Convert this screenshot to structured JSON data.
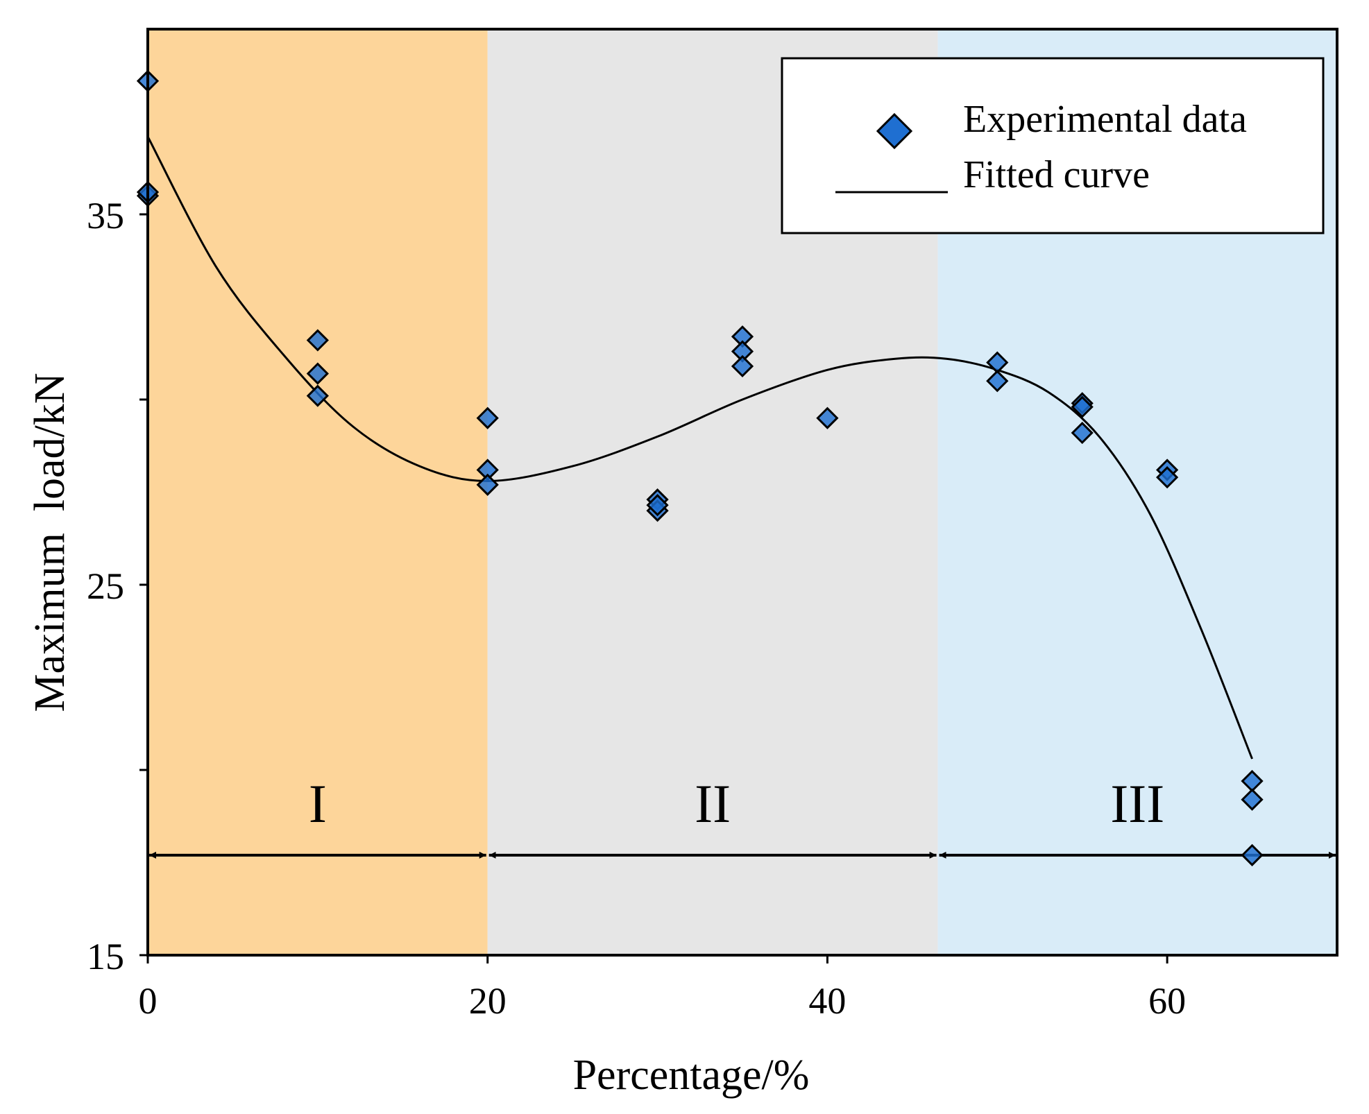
{
  "chart_data": {
    "type": "scatter",
    "xlabel": "Percentage/%",
    "ylabel": "Maximum  load/kN",
    "xlim": [
      0,
      70
    ],
    "ylim": [
      15,
      40
    ],
    "xticks": [
      0,
      20,
      40,
      60
    ],
    "yticks": [
      15,
      20,
      25,
      30,
      35
    ],
    "ytick_labels": [
      {
        "value": 15,
        "label": "15"
      },
      {
        "value": 25,
        "label": "25"
      },
      {
        "value": 35,
        "label": "35"
      }
    ],
    "xtick_labels": [
      {
        "value": 0,
        "label": "0"
      },
      {
        "value": 20,
        "label": "20"
      },
      {
        "value": 40,
        "label": "40"
      },
      {
        "value": 60,
        "label": "60"
      }
    ],
    "regions": [
      {
        "label": "I",
        "x_start": 0,
        "x_end": 20,
        "color": "#fdd59a"
      },
      {
        "label": "II",
        "x_start": 20,
        "x_end": 46.5,
        "color": "#e6e6e6"
      },
      {
        "label": "III",
        "x_start": 46.5,
        "x_end": 70,
        "color": "#d9ecf8"
      }
    ],
    "region_arrow_y": 17.7,
    "series": [
      {
        "name": "Experimental data",
        "kind": "scatter",
        "marker": "diamond",
        "color": "#1f6fd1",
        "points": [
          [
            0,
            38.6
          ],
          [
            0,
            35.5
          ],
          [
            0,
            35.6
          ],
          [
            10,
            31.6
          ],
          [
            10,
            30.7
          ],
          [
            10,
            30.1
          ],
          [
            20,
            29.5
          ],
          [
            20,
            28.1
          ],
          [
            20,
            27.7
          ],
          [
            30,
            27.3
          ],
          [
            30,
            27.0
          ],
          [
            30,
            27.15
          ],
          [
            35,
            31.7
          ],
          [
            35,
            31.3
          ],
          [
            35,
            30.9
          ],
          [
            40,
            29.5
          ],
          [
            50,
            31.0
          ],
          [
            50,
            30.5
          ],
          [
            55,
            29.9
          ],
          [
            55,
            29.8
          ],
          [
            55,
            29.1
          ],
          [
            60,
            28.1
          ],
          [
            60,
            27.9
          ],
          [
            65,
            19.7
          ],
          [
            65,
            19.2
          ],
          [
            65,
            17.7
          ]
        ]
      },
      {
        "name": "Fitted curve",
        "kind": "line",
        "color": "#000000",
        "x": [
          0,
          4,
          8,
          12,
          16,
          20,
          25,
          30,
          35,
          40,
          44,
          47,
          50,
          53,
          56,
          59,
          62,
          65
        ],
        "y": [
          37.1,
          33.6,
          31.2,
          29.3,
          28.2,
          27.8,
          28.2,
          29.0,
          30.0,
          30.8,
          31.1,
          31.1,
          30.8,
          30.2,
          29.0,
          26.9,
          23.8,
          20.3
        ]
      }
    ],
    "legend": {
      "position": "top-right",
      "entries": [
        "Experimental data",
        "Fitted curve"
      ]
    }
  }
}
